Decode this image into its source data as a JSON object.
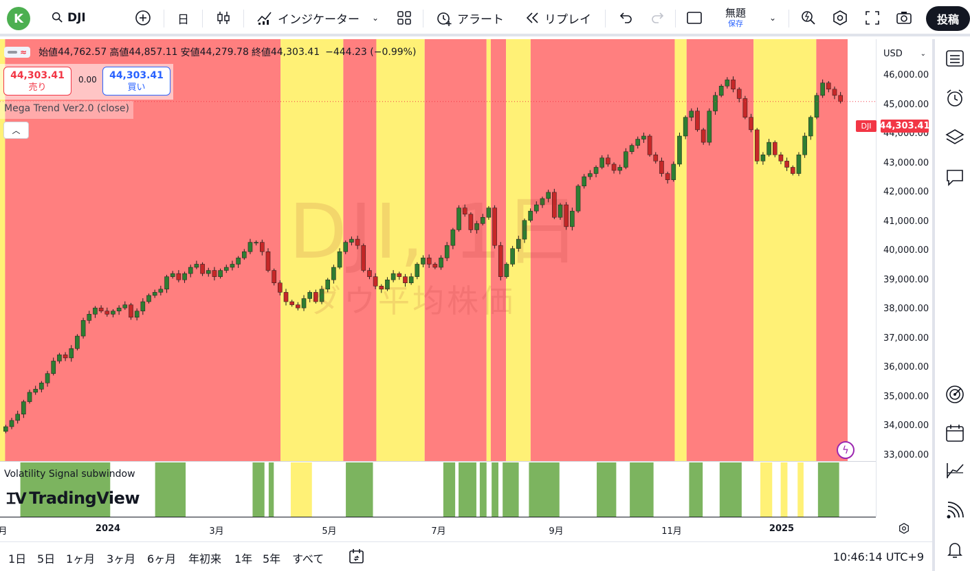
{
  "toolbar": {
    "avatar_letter": "K",
    "symbol": "DJI",
    "interval": "日",
    "indicators_label": "インジケーター",
    "alert_label": "アラート",
    "replay_label": "リプレイ",
    "layout_name": "無題",
    "layout_status": "保存",
    "post_label": "投稿"
  },
  "legend": {
    "open_label": "始値",
    "open": "44,762.57",
    "high_label": "高値",
    "high": "44,857.11",
    "low_label": "安値",
    "low": "44,279.78",
    "close_label": "終値",
    "close": "44,303.41",
    "change": "−444.23 (−0.99%)"
  },
  "trade": {
    "sell_price": "44,303.41",
    "sell_label": "売り",
    "spread": "0.00",
    "buy_price": "44,303.41",
    "buy_label": "買い"
  },
  "indicator_label": "Mega Trend Ver2.0 (close)",
  "watermark": {
    "title": "DJI, 1日",
    "subtitle": "ダウ平均株価"
  },
  "price_scale": {
    "currency": "USD",
    "ticks": [
      "46,000.00",
      "45,000.00",
      "44,000.00",
      "43,000.00",
      "42,000.00",
      "41,000.00",
      "40,000.00",
      "39,000.00",
      "38,000.00",
      "37,000.00",
      "36,000.00",
      "35,000.00",
      "34,000.00",
      "33,000.00"
    ],
    "last_price": "44,303.41",
    "symbol_tag": "DJI"
  },
  "sub_window": {
    "label": "Volatility Signal subwindow"
  },
  "brand": {
    "logo_text": "TradingView"
  },
  "time_axis": {
    "ticks": [
      {
        "label": "月",
        "bold": false
      },
      {
        "label": "2024",
        "bold": true
      },
      {
        "label": "3月",
        "bold": false
      },
      {
        "label": "5月",
        "bold": false
      },
      {
        "label": "7月",
        "bold": false
      },
      {
        "label": "9月",
        "bold": false
      },
      {
        "label": "11月",
        "bold": false
      },
      {
        "label": "2025",
        "bold": true
      }
    ]
  },
  "bottom_bar": {
    "ranges": [
      "1日",
      "5日",
      "1ヶ月",
      "3ヶ月",
      "6ヶ月",
      "年初来",
      "1年",
      "5年",
      "すべて"
    ],
    "clock": "10:46:14 UTC+9"
  },
  "colors": {
    "bear_zone": "#ff7f7f",
    "bull_zone": "#fff176",
    "up_candle": "#2e7d32",
    "down_candle": "#c62828",
    "signal_green": "#7cb45f",
    "signal_yellow": "#fff176",
    "accent_red": "#f23645"
  },
  "chart_data": {
    "type": "candlestick",
    "title": "DJI, 1日",
    "xlim": [
      "2023-12",
      "2025-02"
    ],
    "ylim": [
      32800,
      46300
    ],
    "last_price": 44303.41,
    "closes": [
      33900,
      34100,
      34300,
      34700,
      35000,
      35100,
      35300,
      35600,
      36000,
      36200,
      36100,
      36400,
      36800,
      37300,
      37500,
      37700,
      37600,
      37500,
      37600,
      37700,
      37800,
      37400,
      37600,
      37900,
      38100,
      38200,
      38300,
      38700,
      38800,
      38600,
      38800,
      39000,
      39100,
      38800,
      38900,
      38700,
      38900,
      39000,
      39100,
      39300,
      39500,
      39800,
      39800,
      39500,
      38900,
      38500,
      38200,
      37900,
      37800,
      37700,
      38000,
      38200,
      37900,
      38300,
      38600,
      39000,
      39500,
      39800,
      39900,
      39700,
      38900,
      38700,
      38400,
      38300,
      38600,
      38800,
      38700,
      38500,
      38700,
      39100,
      39300,
      39100,
      39000,
      39300,
      39700,
      40200,
      40900,
      40700,
      40200,
      40400,
      40600,
      40900,
      39700,
      38700,
      39100,
      39600,
      39900,
      40500,
      40800,
      41000,
      41200,
      41400,
      40600,
      41000,
      40300,
      40800,
      41600,
      41900,
      42000,
      42200,
      42500,
      42300,
      42100,
      42200,
      42700,
      42900,
      43100,
      43200,
      42600,
      42400,
      42000,
      41800,
      42300,
      43200,
      43800,
      44000,
      43400,
      43000,
      44000,
      44500,
      44800,
      45000,
      44700,
      44400,
      43800,
      43400,
      42400,
      42600,
      43000,
      42600,
      42400,
      42200,
      42000,
      42600,
      43200,
      43800,
      44500,
      44900,
      44700,
      44500,
      44303
    ]
  },
  "zones": [
    {
      "from": 0,
      "to": 0.006,
      "state": "bull"
    },
    {
      "from": 0.006,
      "to": 0.331,
      "state": "bear"
    },
    {
      "from": 0.331,
      "to": 0.405,
      "state": "bull"
    },
    {
      "from": 0.405,
      "to": 0.444,
      "state": "bear"
    },
    {
      "from": 0.444,
      "to": 0.501,
      "state": "bull"
    },
    {
      "from": 0.501,
      "to": 0.574,
      "state": "bear"
    },
    {
      "from": 0.574,
      "to": 0.579,
      "state": "bull"
    },
    {
      "from": 0.579,
      "to": 0.597,
      "state": "bear"
    },
    {
      "from": 0.597,
      "to": 0.626,
      "state": "bull"
    },
    {
      "from": 0.626,
      "to": 0.796,
      "state": "bear"
    },
    {
      "from": 0.796,
      "to": 0.81,
      "state": "bull"
    },
    {
      "from": 0.81,
      "to": 0.889,
      "state": "bear"
    },
    {
      "from": 0.889,
      "to": 0.963,
      "state": "bull"
    },
    {
      "from": 0.963,
      "to": 1.0,
      "state": "bear"
    }
  ],
  "signals": [
    {
      "from": 0.024,
      "to": 0.13,
      "state": "green"
    },
    {
      "from": 0.183,
      "to": 0.219,
      "state": "green"
    },
    {
      "from": 0.298,
      "to": 0.312,
      "state": "green"
    },
    {
      "from": 0.317,
      "to": 0.323,
      "state": "green"
    },
    {
      "from": 0.343,
      "to": 0.368,
      "state": "yellow"
    },
    {
      "from": 0.408,
      "to": 0.44,
      "state": "green"
    },
    {
      "from": 0.523,
      "to": 0.537,
      "state": "green"
    },
    {
      "from": 0.541,
      "to": 0.562,
      "state": "green"
    },
    {
      "from": 0.566,
      "to": 0.574,
      "state": "green"
    },
    {
      "from": 0.58,
      "to": 0.588,
      "state": "green"
    },
    {
      "from": 0.593,
      "to": 0.612,
      "state": "green"
    },
    {
      "from": 0.624,
      "to": 0.66,
      "state": "green"
    },
    {
      "from": 0.704,
      "to": 0.727,
      "state": "green"
    },
    {
      "from": 0.743,
      "to": 0.771,
      "state": "green"
    },
    {
      "from": 0.813,
      "to": 0.829,
      "state": "green"
    },
    {
      "from": 0.849,
      "to": 0.875,
      "state": "green"
    },
    {
      "from": 0.897,
      "to": 0.911,
      "state": "yellow"
    },
    {
      "from": 0.921,
      "to": 0.929,
      "state": "yellow"
    },
    {
      "from": 0.941,
      "to": 0.946,
      "state": "yellow"
    },
    {
      "from": 0.943,
      "to": 0.948,
      "state": "yellow"
    },
    {
      "from": 0.965,
      "to": 0.99,
      "state": "green"
    }
  ]
}
